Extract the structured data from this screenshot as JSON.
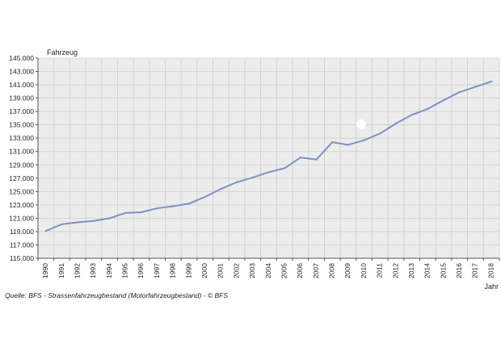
{
  "chart_data": {
    "type": "line",
    "title": "",
    "ylabel": "Fahrzeug",
    "xlabel": "Jahr",
    "source": "Quelle: BFS - Strassenfahrzeugbestand (Motorfahrzeugbestand) - © BFS",
    "ylim": [
      115000,
      145000
    ],
    "y_ticks": [
      115000,
      117000,
      119000,
      121000,
      123000,
      125000,
      127000,
      129000,
      131000,
      133000,
      135000,
      137000,
      139000,
      141000,
      143000,
      145000
    ],
    "y_tick_labels": [
      "115.000",
      "117.000",
      "119.000",
      "121.000",
      "123.000",
      "125.000",
      "127.000",
      "129.000",
      "131.000",
      "133.000",
      "135.000",
      "137.000",
      "139.000",
      "141.000",
      "143.000",
      "145.000"
    ],
    "x": [
      "1990",
      "1991",
      "1992",
      "1993",
      "1994",
      "1995",
      "1996",
      "1997",
      "1998",
      "1999",
      "2000",
      "2001",
      "2002",
      "2003",
      "2004",
      "2005",
      "2006",
      "2007",
      "2008",
      "2009",
      "2010",
      "2011",
      "2012",
      "2013",
      "2014",
      "2015",
      "2016",
      "2017",
      "2018"
    ],
    "series": [
      {
        "values": [
          119100,
          120100,
          120400,
          120600,
          121000,
          121800,
          121900,
          122500,
          122800,
          123200,
          124200,
          125400,
          126400,
          127100,
          127900,
          128500,
          130100,
          129800,
          132400,
          132000,
          132700,
          133700,
          135200,
          136500,
          137400,
          138700,
          139900,
          140700,
          141500
        ]
      }
    ],
    "grid": true,
    "colors": {
      "line": "#7d92c4",
      "plot_background": "#ececec",
      "grid": "#cccccc",
      "axis": "#555555"
    }
  }
}
